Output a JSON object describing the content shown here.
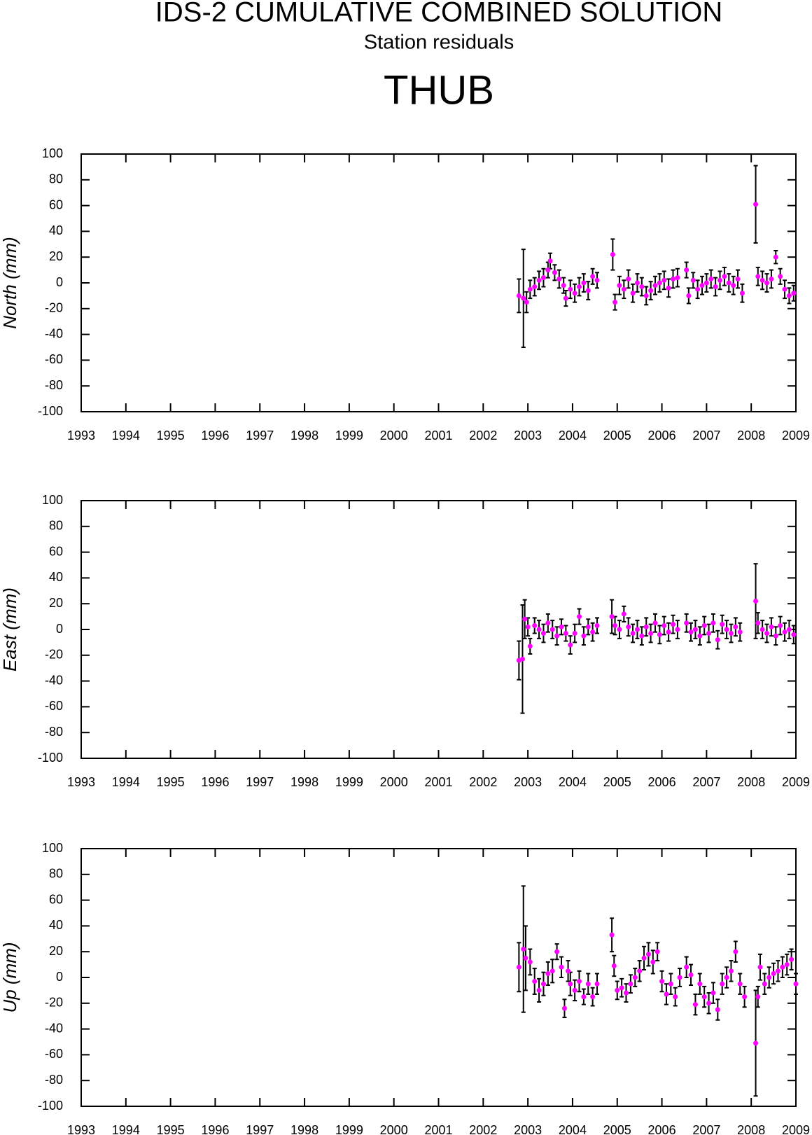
{
  "header": {
    "title": "IDS-2 CUMULATIVE COMBINED SOLUTION",
    "subtitle": "Station residuals",
    "station": "THUB"
  },
  "chart_data": [
    {
      "type": "scatter",
      "y_label": "North (mm)",
      "color": "#ff00ff",
      "xlim": [
        1993,
        2009
      ],
      "xticks": [
        1993,
        1994,
        1995,
        1996,
        1997,
        1998,
        1999,
        2000,
        2001,
        2002,
        2003,
        2004,
        2005,
        2006,
        2007,
        2008,
        2009
      ],
      "ylim": [
        -100,
        100
      ],
      "yticks": [
        -100,
        -80,
        -60,
        -40,
        -20,
        0,
        20,
        40,
        60,
        80,
        100
      ],
      "x": [
        2002.8,
        2002.9,
        2002.97,
        2003.05,
        2003.15,
        2003.25,
        2003.35,
        2003.45,
        2003.5,
        2003.6,
        2003.7,
        2003.8,
        2003.85,
        2003.95,
        2004.05,
        2004.15,
        2004.25,
        2004.35,
        2004.45,
        2004.55,
        2004.9,
        2004.95,
        2005.05,
        2005.15,
        2005.25,
        2005.35,
        2005.45,
        2005.55,
        2005.65,
        2005.75,
        2005.85,
        2005.95,
        2006.05,
        2006.15,
        2006.25,
        2006.35,
        2006.55,
        2006.6,
        2006.7,
        2006.8,
        2006.9,
        2007.0,
        2007.1,
        2007.2,
        2007.3,
        2007.4,
        2007.5,
        2007.6,
        2007.7,
        2007.8,
        2008.1,
        2008.15,
        2008.25,
        2008.35,
        2008.45,
        2008.55,
        2008.65,
        2008.75,
        2008.85,
        2008.95
      ],
      "values": [
        -10,
        -12,
        -15,
        -5,
        -3,
        2,
        4,
        10,
        17,
        8,
        3,
        -2,
        -12,
        -5,
        -8,
        -3,
        0,
        -6,
        5,
        2,
        22,
        -15,
        -2,
        -5,
        3,
        -8,
        0,
        -3,
        -10,
        -6,
        -2,
        0,
        2,
        -4,
        3,
        4,
        10,
        -10,
        2,
        -5,
        -2,
        0,
        3,
        -3,
        2,
        5,
        0,
        -2,
        3,
        -8,
        61,
        5,
        2,
        0,
        3,
        20,
        5,
        -5,
        -10,
        -8
      ],
      "errors": [
        13,
        38,
        8,
        7,
        7,
        7,
        7,
        6,
        6,
        6,
        7,
        6,
        6,
        7,
        7,
        7,
        7,
        7,
        6,
        6,
        12,
        6,
        7,
        7,
        7,
        7,
        7,
        7,
        7,
        7,
        7,
        7,
        7,
        7,
        7,
        7,
        6,
        6,
        6,
        7,
        7,
        7,
        7,
        7,
        7,
        7,
        7,
        7,
        7,
        7,
        30,
        7,
        7,
        7,
        7,
        5,
        6,
        7,
        6,
        6
      ]
    },
    {
      "type": "scatter",
      "y_label": "East (mm)",
      "color": "#ff00ff",
      "xlim": [
        1993,
        2009
      ],
      "xticks": [
        1993,
        1994,
        1995,
        1996,
        1997,
        1998,
        1999,
        2000,
        2001,
        2002,
        2003,
        2004,
        2005,
        2006,
        2007,
        2008,
        2009
      ],
      "ylim": [
        -100,
        100
      ],
      "yticks": [
        -100,
        -80,
        -60,
        -40,
        -20,
        0,
        20,
        40,
        60,
        80,
        100
      ],
      "x": [
        2002.8,
        2002.88,
        2002.93,
        2003.0,
        2003.05,
        2003.15,
        2003.25,
        2003.35,
        2003.45,
        2003.55,
        2003.65,
        2003.75,
        2003.85,
        2003.95,
        2004.05,
        2004.15,
        2004.25,
        2004.35,
        2004.45,
        2004.55,
        2004.88,
        2004.95,
        2005.05,
        2005.15,
        2005.25,
        2005.35,
        2005.45,
        2005.55,
        2005.65,
        2005.75,
        2005.85,
        2005.95,
        2006.05,
        2006.15,
        2006.25,
        2006.35,
        2006.55,
        2006.65,
        2006.75,
        2006.85,
        2006.95,
        2007.05,
        2007.15,
        2007.25,
        2007.35,
        2007.45,
        2007.55,
        2007.65,
        2007.75,
        2008.1,
        2008.15,
        2008.25,
        2008.35,
        2008.45,
        2008.55,
        2008.65,
        2008.75,
        2008.85,
        2008.95
      ],
      "values": [
        -24,
        -23,
        8,
        2,
        -13,
        3,
        0,
        -3,
        5,
        0,
        -5,
        2,
        -3,
        -12,
        -3,
        10,
        -5,
        2,
        -2,
        3,
        10,
        3,
        0,
        12,
        2,
        -3,
        0,
        -5,
        2,
        -3,
        5,
        -4,
        3,
        -2,
        4,
        0,
        5,
        -2,
        0,
        -5,
        3,
        -3,
        5,
        -8,
        4,
        0,
        -3,
        2,
        -2,
        22,
        5,
        0,
        -3,
        2,
        -5,
        3,
        -2,
        0,
        -4
      ],
      "errors": [
        15,
        42,
        15,
        7,
        6,
        6,
        7,
        7,
        7,
        7,
        7,
        6,
        6,
        7,
        7,
        6,
        7,
        6,
        7,
        6,
        13,
        7,
        7,
        6,
        7,
        7,
        7,
        7,
        7,
        7,
        7,
        7,
        7,
        7,
        7,
        7,
        7,
        7,
        7,
        7,
        7,
        7,
        7,
        7,
        7,
        7,
        7,
        7,
        7,
        29,
        8,
        7,
        7,
        7,
        7,
        7,
        7,
        7,
        7
      ]
    },
    {
      "type": "scatter",
      "y_label": "Up (mm)",
      "color": "#ff00ff",
      "xlim": [
        1993,
        2009
      ],
      "xticks": [
        1993,
        1994,
        1995,
        1996,
        1997,
        1998,
        1999,
        2000,
        2001,
        2002,
        2003,
        2004,
        2005,
        2006,
        2007,
        2008,
        2009
      ],
      "ylim": [
        -100,
        100
      ],
      "yticks": [
        -100,
        -80,
        -60,
        -40,
        -20,
        0,
        20,
        40,
        60,
        80,
        100
      ],
      "x": [
        2002.8,
        2002.9,
        2002.95,
        2003.05,
        2003.15,
        2003.25,
        2003.35,
        2003.45,
        2003.55,
        2003.65,
        2003.75,
        2003.82,
        2003.9,
        2003.95,
        2004.05,
        2004.15,
        2004.25,
        2004.35,
        2004.45,
        2004.55,
        2004.88,
        2004.93,
        2005.0,
        2005.1,
        2005.2,
        2005.3,
        2005.4,
        2005.5,
        2005.6,
        2005.7,
        2005.8,
        2005.9,
        2006.0,
        2006.1,
        2006.2,
        2006.3,
        2006.4,
        2006.55,
        2006.65,
        2006.75,
        2006.85,
        2006.95,
        2007.05,
        2007.15,
        2007.25,
        2007.35,
        2007.45,
        2007.55,
        2007.65,
        2007.75,
        2007.85,
        2008.1,
        2008.15,
        2008.2,
        2008.3,
        2008.4,
        2008.5,
        2008.6,
        2008.7,
        2008.8,
        2008.9,
        2009.0
      ],
      "values": [
        8,
        22,
        15,
        12,
        -3,
        -10,
        -5,
        3,
        5,
        20,
        8,
        -24,
        5,
        -5,
        -10,
        -3,
        -15,
        -5,
        -15,
        -5,
        33,
        9,
        -10,
        -8,
        -12,
        -5,
        0,
        5,
        15,
        18,
        12,
        20,
        -3,
        -13,
        -5,
        -15,
        0,
        8,
        2,
        -21,
        -5,
        -15,
        -20,
        -12,
        -25,
        -5,
        0,
        5,
        20,
        -5,
        -15,
        -51,
        -15,
        8,
        -5,
        0,
        3,
        5,
        8,
        10,
        14,
        -5
      ],
      "errors": [
        19,
        49,
        25,
        10,
        10,
        9,
        9,
        9,
        9,
        6,
        8,
        7,
        8,
        9,
        8,
        8,
        6,
        8,
        7,
        8,
        13,
        8,
        7,
        7,
        7,
        7,
        7,
        8,
        9,
        9,
        9,
        7,
        8,
        8,
        8,
        7,
        7,
        8,
        8,
        8,
        8,
        8,
        8,
        8,
        8,
        8,
        8,
        8,
        8,
        8,
        8,
        41,
        8,
        10,
        8,
        8,
        8,
        8,
        8,
        8,
        8,
        8
      ]
    }
  ]
}
